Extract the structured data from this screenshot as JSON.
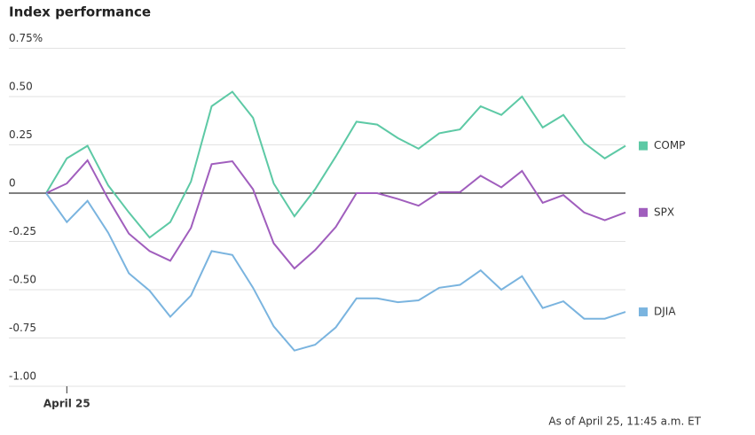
{
  "chart_data": {
    "type": "line",
    "title": "Index performance",
    "categories": [
      null,
      "April 25",
      null,
      null,
      null,
      null,
      null,
      null,
      null,
      null,
      null,
      null,
      null,
      null,
      null,
      null,
      null,
      null,
      null,
      null,
      null,
      null,
      null,
      null,
      null,
      null,
      null,
      null,
      null
    ],
    "series": [
      {
        "name": "COMP",
        "color": "#5dc9a5",
        "values": [
          0,
          0.18,
          0.245,
          0.04,
          -0.1,
          -0.23,
          -0.15,
          0.06,
          0.45,
          0.525,
          0.39,
          0.05,
          -0.12,
          0.02,
          0.19,
          0.37,
          0.355,
          0.285,
          0.23,
          0.31,
          0.33,
          0.45,
          0.405,
          0.5,
          0.34,
          0.405,
          0.26,
          0.18,
          0.245
        ]
      },
      {
        "name": "SPX",
        "color": "#a05ebd",
        "values": [
          0,
          0.05,
          0.17,
          -0.03,
          -0.21,
          -0.3,
          -0.35,
          -0.18,
          0.15,
          0.165,
          0.02,
          -0.26,
          -0.39,
          -0.295,
          -0.175,
          0,
          0,
          -0.03,
          -0.065,
          0.005,
          0.005,
          0.09,
          0.03,
          0.115,
          -0.05,
          -0.01,
          -0.1,
          -0.14,
          -0.1
        ]
      },
      {
        "name": "DJIA",
        "color": "#7ab4df",
        "values": [
          0,
          -0.15,
          -0.04,
          -0.205,
          -0.415,
          -0.505,
          -0.64,
          -0.53,
          -0.3,
          -0.32,
          -0.49,
          -0.69,
          -0.815,
          -0.785,
          -0.695,
          -0.545,
          -0.545,
          -0.565,
          -0.555,
          -0.49,
          -0.475,
          -0.4,
          -0.5,
          -0.43,
          -0.595,
          -0.56,
          -0.65,
          -0.65,
          -0.615
        ]
      }
    ],
    "ylim": [
      -1,
      0.75
    ],
    "yticks": [
      {
        "value": 0.75,
        "label": "0.75%"
      },
      {
        "value": 0.5,
        "label": "0.50"
      },
      0.25,
      0,
      -0.25,
      {
        "value": -0.5,
        "label": "-0.50"
      },
      -0.75,
      {
        "value": -1,
        "label": "-1.00"
      }
    ],
    "grid": true,
    "note": "As of April 25, 11:45 a.m. ET"
  }
}
